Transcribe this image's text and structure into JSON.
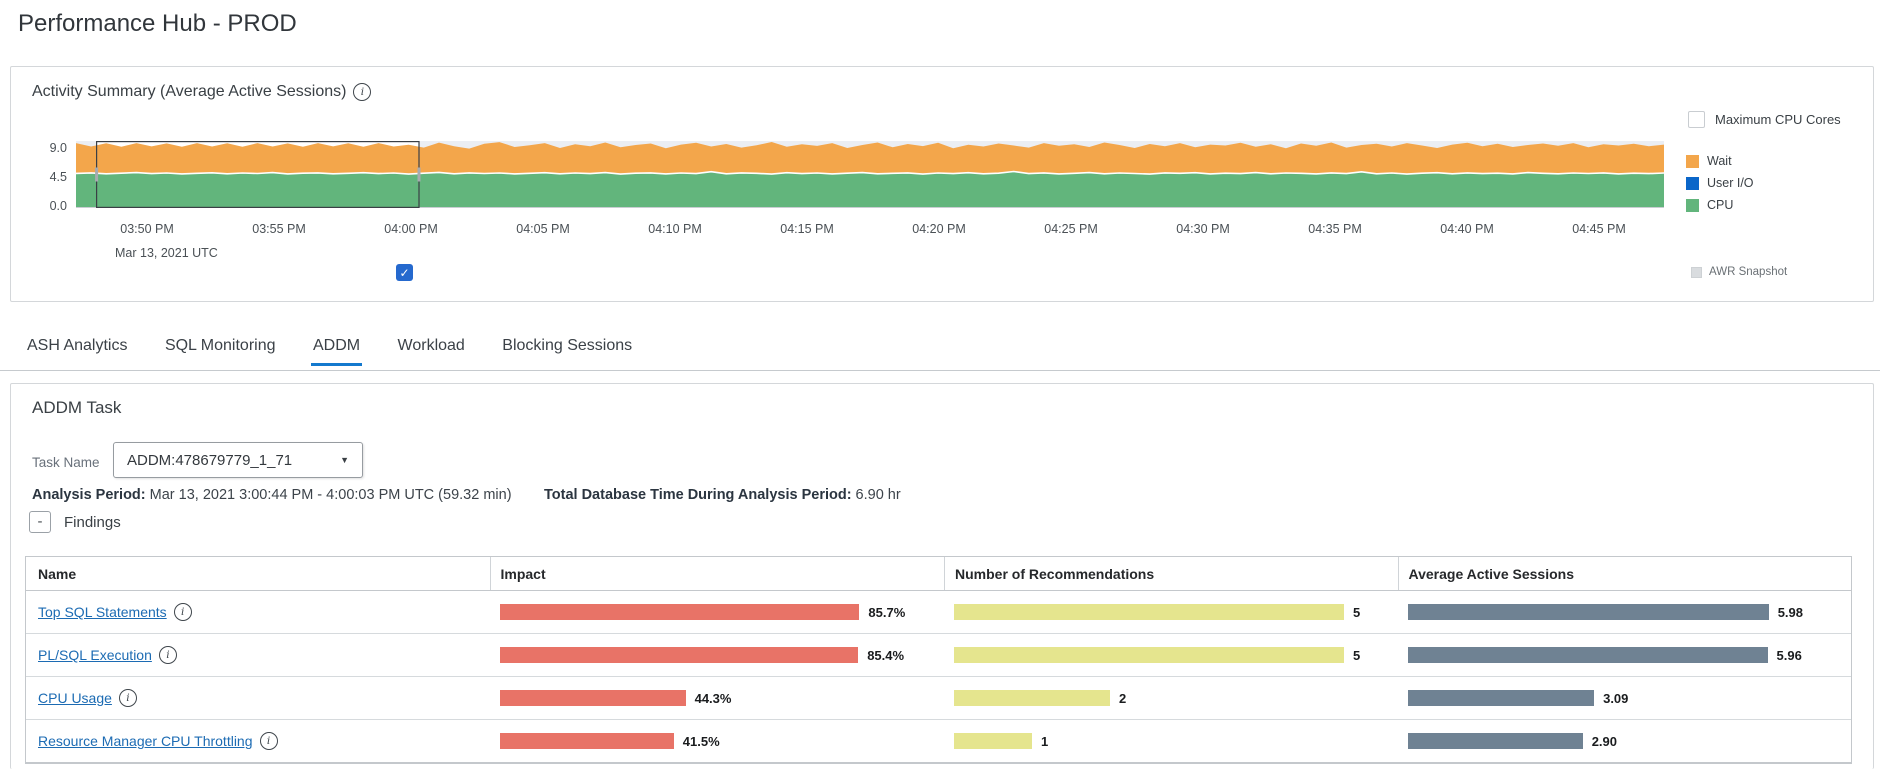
{
  "page": {
    "title": "Performance Hub - PROD"
  },
  "activity": {
    "title": "Activity Summary (Average Active Sessions)",
    "max_cpu_cores_label": "Maximum CPU Cores",
    "max_cpu_cores_checked": false,
    "awr_snapshot_label": "AWR Snapshot",
    "legend": [
      {
        "label": "Wait",
        "color": "#F3A64B"
      },
      {
        "label": "User I/O",
        "color": "#0A66C9"
      },
      {
        "label": "CPU",
        "color": "#62B57C"
      }
    ]
  },
  "chart_data": {
    "type": "area",
    "stacked": true,
    "title": "Activity Summary (Average Active Sessions)",
    "ylabel": "Average Active Sessions",
    "ylim": [
      0,
      9
    ],
    "yticks": [
      "9.0",
      "4.5",
      "0.0"
    ],
    "xticks": [
      "03:50 PM",
      "03:55 PM",
      "04:00 PM",
      "04:05 PM",
      "04:10 PM",
      "04:15 PM",
      "04:20 PM",
      "04:25 PM",
      "04:30 PM",
      "04:35 PM",
      "04:40 PM",
      "04:45 PM"
    ],
    "x_sub_label": "Mar 13, 2021 UTC",
    "grid": false,
    "legend_position": "right",
    "selection": {
      "from_frac": 0.013,
      "to_frac": 0.216
    },
    "series_meta": [
      {
        "name": "Wait",
        "color": "#F3A64B"
      },
      {
        "name": "User I/O",
        "color": "#0A66C9"
      },
      {
        "name": "CPU",
        "color": "#62B57C"
      }
    ],
    "cpu": [
      4.65,
      4.72,
      4.6,
      4.68,
      4.75,
      4.62,
      4.7,
      4.58,
      4.66,
      4.73,
      4.6,
      4.7,
      4.64,
      4.76,
      4.58,
      4.68,
      4.72,
      4.6,
      4.66,
      4.74,
      4.62,
      4.7,
      4.56,
      4.68,
      4.78,
      4.6,
      4.72,
      4.64,
      4.7,
      4.58,
      4.66,
      4.74,
      4.6,
      4.7,
      4.62,
      4.76,
      4.56,
      4.68,
      4.72,
      4.58,
      4.7,
      4.62,
      4.88,
      4.6,
      4.72,
      4.66,
      4.56,
      4.74,
      4.62,
      4.7,
      4.58,
      4.68,
      4.76,
      4.6,
      4.66,
      4.72,
      4.56,
      4.7,
      4.62,
      4.74,
      4.6,
      4.68,
      4.9,
      4.62,
      4.72,
      4.58,
      4.66,
      4.76,
      4.6,
      4.7,
      4.64,
      4.56,
      4.72,
      4.66,
      4.74,
      4.58,
      4.68,
      4.62,
      4.76,
      4.6,
      4.7,
      4.66,
      4.58,
      4.72,
      4.62,
      4.86,
      4.6,
      4.7,
      4.56,
      4.68,
      4.74,
      4.6,
      4.72,
      4.62,
      4.68,
      4.58,
      4.76,
      4.66,
      4.6,
      4.7,
      4.64,
      4.72,
      4.58,
      4.68,
      4.62,
      4.7
    ],
    "total": [
      8.72,
      8.26,
      8.7,
      8.24,
      8.72,
      8.28,
      8.68,
      8.24,
      8.72,
      8.26,
      8.7,
      8.24,
      8.72,
      8.26,
      8.68,
      8.24,
      8.72,
      8.28,
      8.7,
      8.24,
      8.72,
      8.26,
      8.5,
      8.12,
      8.78,
      8.3,
      7.98,
      8.62,
      8.85,
      8.2,
      8.42,
      8.72,
      8.06,
      8.56,
      8.3,
      8.8,
      8.16,
      8.46,
      8.66,
      8.02,
      8.52,
      8.76,
      8.26,
      8.6,
      8.12,
      8.42,
      8.86,
      8.22,
      8.56,
      8.34,
      8.72,
      8.06,
      8.46,
      8.8,
      8.16,
      8.6,
      8.32,
      8.76,
      8.02,
      8.5,
      8.26,
      8.66,
      8.4,
      8.12,
      8.72,
      8.36,
      8.56,
      8.2,
      8.8,
      8.46,
      8.06,
      8.6,
      8.3,
      8.72,
      8.16,
      8.52,
      8.4,
      8.76,
      8.22,
      8.56,
      8.02,
      8.66,
      8.36,
      8.8,
      8.12,
      8.46,
      8.62,
      8.26,
      8.72,
      8.4,
      8.06,
      8.52,
      8.76,
      8.3,
      8.62,
      8.2,
      8.46,
      8.66,
      8.36,
      8.72,
      8.16,
      8.56,
      8.4,
      8.62,
      8.3,
      8.52
    ]
  },
  "tabs": {
    "items": [
      "ASH Analytics",
      "SQL Monitoring",
      "ADDM",
      "Workload",
      "Blocking Sessions"
    ],
    "active": "ADDM"
  },
  "addm": {
    "section_title": "ADDM Task",
    "task_name_label": "Task Name",
    "task_name_value": "ADDM:478679779_1_71",
    "analysis_period_label": "Analysis Period:",
    "analysis_period_value": " Mar 13, 2021 3:00:44 PM - 4:00:03 PM UTC (59.32 min)",
    "total_db_time_label": "Total Database Time During Analysis Period:",
    "total_db_time_value": " 6.90 hr",
    "collapse_button": "-",
    "findings_label": "Findings",
    "table": {
      "columns": [
        "Name",
        "Impact",
        "Number of Recommendations",
        "Average Active Sessions"
      ],
      "bar_colors": {
        "impact": "#E87367",
        "recommendations": "#E5E58E",
        "sessions": "#6F8293"
      },
      "rows": [
        {
          "name": "Top SQL Statements",
          "impact_pct": 85.7,
          "impact_label": "85.7%",
          "recommendations": 5,
          "aas": 5.98,
          "aas_label": "5.98"
        },
        {
          "name": "PL/SQL Execution",
          "impact_pct": 85.4,
          "impact_label": "85.4%",
          "recommendations": 5,
          "aas": 5.96,
          "aas_label": "5.96"
        },
        {
          "name": "CPU Usage",
          "impact_pct": 44.3,
          "impact_label": "44.3%",
          "recommendations": 2,
          "aas": 3.09,
          "aas_label": "3.09"
        },
        {
          "name": "Resource Manager CPU Throttling",
          "impact_pct": 41.5,
          "impact_label": "41.5%",
          "recommendations": 1,
          "aas": 2.9,
          "aas_label": "2.90"
        }
      ]
    }
  }
}
